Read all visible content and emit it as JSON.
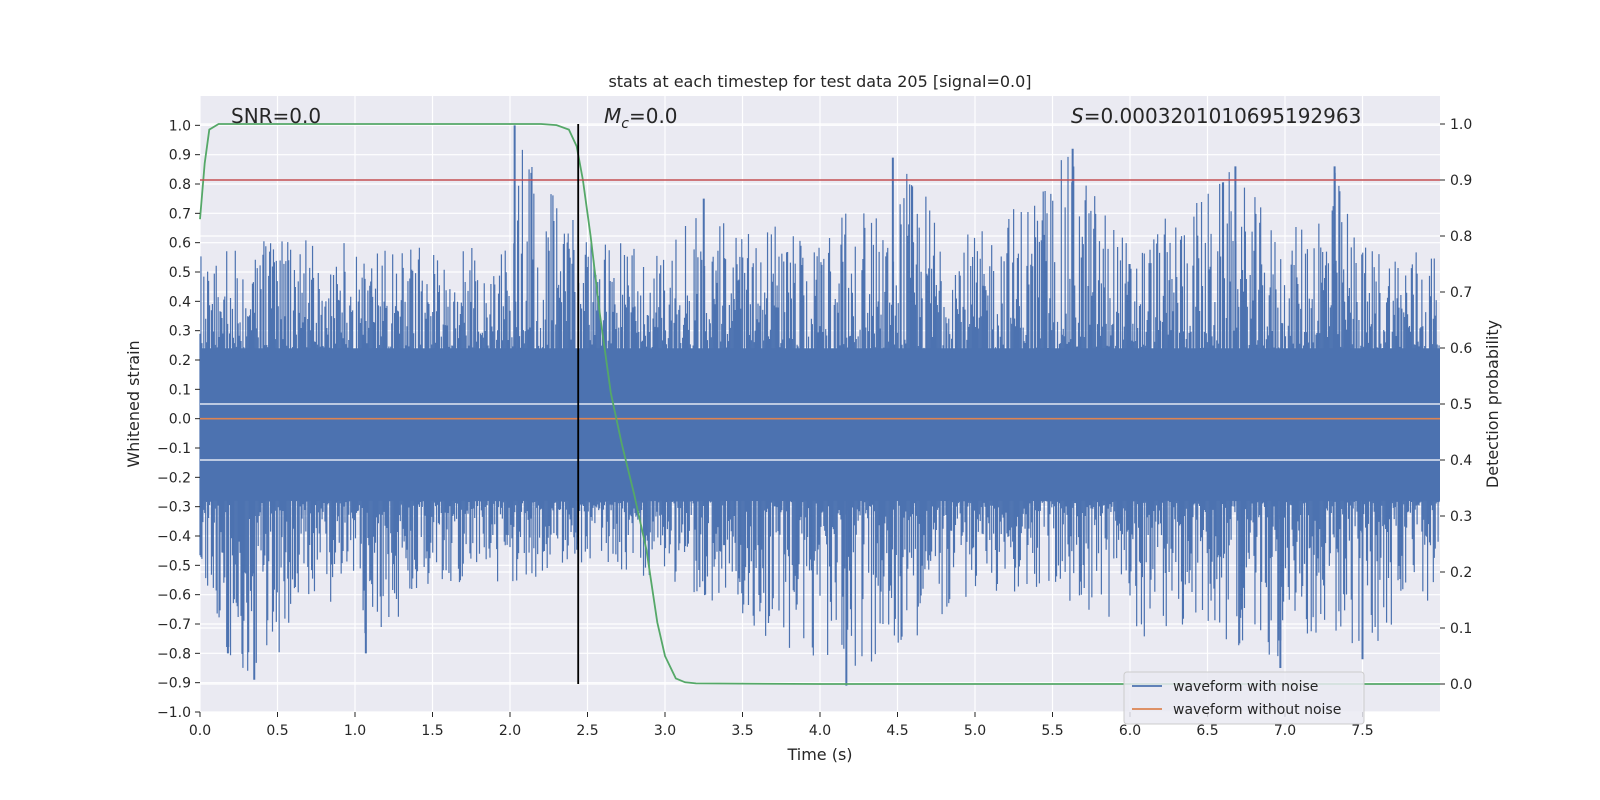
{
  "chart_data": {
    "type": "line",
    "title": "stats at each timestep for test data 205 [signal=0.0]",
    "xlabel": "Time (s)",
    "ylabel": "Whitened strain",
    "ylabel_right": "Detection probability",
    "xlim": [
      0.0,
      8.0
    ],
    "ylim": [
      -1.0,
      1.1
    ],
    "ylim_right": [
      -0.05,
      1.05
    ],
    "x_ticks": [
      "0.0",
      "0.5",
      "1.0",
      "1.5",
      "2.0",
      "2.5",
      "3.0",
      "3.5",
      "4.0",
      "4.5",
      "5.0",
      "5.5",
      "6.0",
      "6.5",
      "7.0",
      "7.5"
    ],
    "y_ticks": [
      "−1.0",
      "−0.9",
      "−0.8",
      "−0.7",
      "−0.6",
      "−0.5",
      "−0.4",
      "−0.3",
      "−0.2",
      "−0.1",
      "0.0",
      "0.1",
      "0.2",
      "0.3",
      "0.4",
      "0.5",
      "0.6",
      "0.7",
      "0.8",
      "0.9",
      "1.0"
    ],
    "y_ticks_right": [
      "0.0",
      "0.1",
      "0.2",
      "0.3",
      "0.4",
      "0.5",
      "0.6",
      "0.7",
      "0.8",
      "0.9",
      "1.0"
    ],
    "grid": true,
    "legend_position": "lower-right",
    "annotations": {
      "snr": "SNR=0.0",
      "mc_symbol": "M",
      "mc_subscript": "c",
      "mc_value": "=0.0",
      "s_symbol": "S",
      "s_value": "=0.0003201010695192963"
    },
    "series": [
      {
        "name": "waveform with noise",
        "color": "#4c72b0",
        "axis": "left",
        "description_kind": "noisy strain",
        "envelope_top": [
          [
            0.0,
            0.58
          ],
          [
            0.5,
            0.62
          ],
          [
            1.0,
            0.6
          ],
          [
            1.5,
            0.58
          ],
          [
            2.0,
            0.6
          ],
          [
            2.03,
            1.0
          ],
          [
            2.5,
            0.6
          ],
          [
            3.0,
            0.6
          ],
          [
            3.25,
            0.75
          ],
          [
            4.0,
            0.6
          ],
          [
            4.47,
            0.89
          ],
          [
            5.0,
            0.62
          ],
          [
            5.63,
            0.92
          ],
          [
            6.0,
            0.6
          ],
          [
            6.68,
            0.86
          ],
          [
            7.0,
            0.6
          ],
          [
            7.32,
            0.86
          ],
          [
            7.5,
            0.6
          ],
          [
            8.0,
            0.6
          ]
        ],
        "envelope_bottom": [
          [
            0.0,
            -0.5
          ],
          [
            0.18,
            -0.8
          ],
          [
            0.35,
            -0.89
          ],
          [
            1.0,
            -0.55
          ],
          [
            1.07,
            -0.8
          ],
          [
            1.5,
            -0.55
          ],
          [
            2.0,
            -0.58
          ],
          [
            2.5,
            -0.5
          ],
          [
            3.0,
            -0.55
          ],
          [
            4.17,
            -0.91
          ],
          [
            5.0,
            -0.6
          ],
          [
            5.5,
            -0.6
          ],
          [
            6.0,
            -0.75
          ],
          [
            6.5,
            -0.72
          ],
          [
            6.97,
            -0.85
          ],
          [
            7.0,
            -0.7
          ],
          [
            7.5,
            -0.82
          ],
          [
            8.0,
            -0.6
          ]
        ]
      },
      {
        "name": "waveform without noise",
        "color": "#dd8452",
        "axis": "left",
        "x": [
          0.0,
          8.0
        ],
        "y": [
          0.0,
          0.0
        ]
      },
      {
        "name": "",
        "color": "#55a868",
        "axis": "right",
        "x": [
          0.0,
          0.03,
          0.06,
          0.12,
          0.2,
          0.5,
          1.0,
          1.5,
          2.0,
          2.2,
          2.3,
          2.38,
          2.43,
          2.47,
          2.52,
          2.58,
          2.65,
          2.72,
          2.8,
          2.88,
          2.95,
          3.0,
          3.07,
          3.13,
          3.2,
          4.0,
          5.0,
          6.0,
          7.0,
          8.0
        ],
        "y": [
          0.83,
          0.93,
          0.99,
          1.0,
          1.0,
          1.0,
          1.0,
          1.0,
          1.0,
          1.0,
          0.998,
          0.99,
          0.96,
          0.9,
          0.8,
          0.66,
          0.52,
          0.43,
          0.34,
          0.24,
          0.11,
          0.05,
          0.01,
          0.003,
          0.001,
          0.0,
          0.0,
          0.0,
          0.0,
          0.0
        ]
      },
      {
        "name": "",
        "color": "#c44e52",
        "axis": "right",
        "x": [
          0.0,
          8.0
        ],
        "y": [
          0.9,
          0.9
        ]
      }
    ],
    "vertical_line": {
      "x": 2.44,
      "y_range_right": [
        0.0,
        1.0
      ],
      "color": "#000000"
    }
  }
}
